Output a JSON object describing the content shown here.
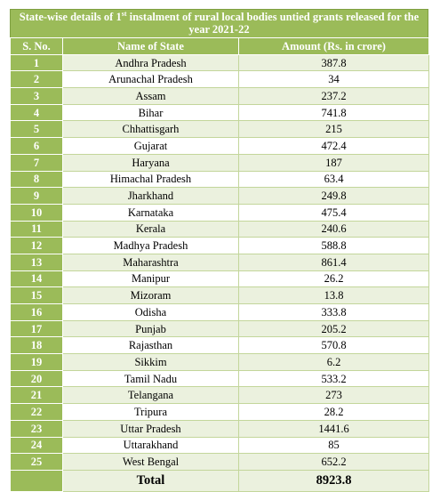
{
  "title": {
    "part1": "State-wise details of 1",
    "sup": "st",
    "part2": " instalment of rural local bodies untied grants released for the year 2021-22"
  },
  "headers": {
    "sno": "S. No.",
    "state": "Name of State",
    "amount": "Amount (Rs. in crore)"
  },
  "rows": [
    {
      "sno": "1",
      "state": "Andhra Pradesh",
      "amount": "387.8"
    },
    {
      "sno": "2",
      "state": "Arunachal Pradesh",
      "amount": "34"
    },
    {
      "sno": "3",
      "state": "Assam",
      "amount": "237.2"
    },
    {
      "sno": "4",
      "state": "Bihar",
      "amount": "741.8"
    },
    {
      "sno": "5",
      "state": "Chhattisgarh",
      "amount": "215"
    },
    {
      "sno": "6",
      "state": "Gujarat",
      "amount": "472.4"
    },
    {
      "sno": "7",
      "state": "Haryana",
      "amount": "187"
    },
    {
      "sno": "8",
      "state": "Himachal Pradesh",
      "amount": "63.4"
    },
    {
      "sno": "9",
      "state": "Jharkhand",
      "amount": "249.8"
    },
    {
      "sno": "10",
      "state": "Karnataka",
      "amount": "475.4"
    },
    {
      "sno": "11",
      "state": "Kerala",
      "amount": "240.6"
    },
    {
      "sno": "12",
      "state": "Madhya Pradesh",
      "amount": "588.8"
    },
    {
      "sno": "13",
      "state": "Maharashtra",
      "amount": "861.4"
    },
    {
      "sno": "14",
      "state": "Manipur",
      "amount": "26.2"
    },
    {
      "sno": "15",
      "state": "Mizoram",
      "amount": "13.8"
    },
    {
      "sno": "16",
      "state": "Odisha",
      "amount": "333.8"
    },
    {
      "sno": "17",
      "state": "Punjab",
      "amount": "205.2"
    },
    {
      "sno": "18",
      "state": "Rajasthan",
      "amount": "570.8"
    },
    {
      "sno": "19",
      "state": "Sikkim",
      "amount": "6.2"
    },
    {
      "sno": "20",
      "state": "Tamil Nadu",
      "amount": "533.2"
    },
    {
      "sno": "21",
      "state": "Telangana",
      "amount": "273"
    },
    {
      "sno": "22",
      "state": "Tripura",
      "amount": "28.2"
    },
    {
      "sno": "23",
      "state": "Uttar Pradesh",
      "amount": "1441.6"
    },
    {
      "sno": "24",
      "state": "Uttarakhand",
      "amount": "85"
    },
    {
      "sno": "25",
      "state": "West Bengal",
      "amount": "652.2"
    }
  ],
  "total": {
    "label": "Total",
    "amount": "8923.8"
  },
  "colors": {
    "header_green": "#9bbb59",
    "band_light": "#ebf1de"
  }
}
